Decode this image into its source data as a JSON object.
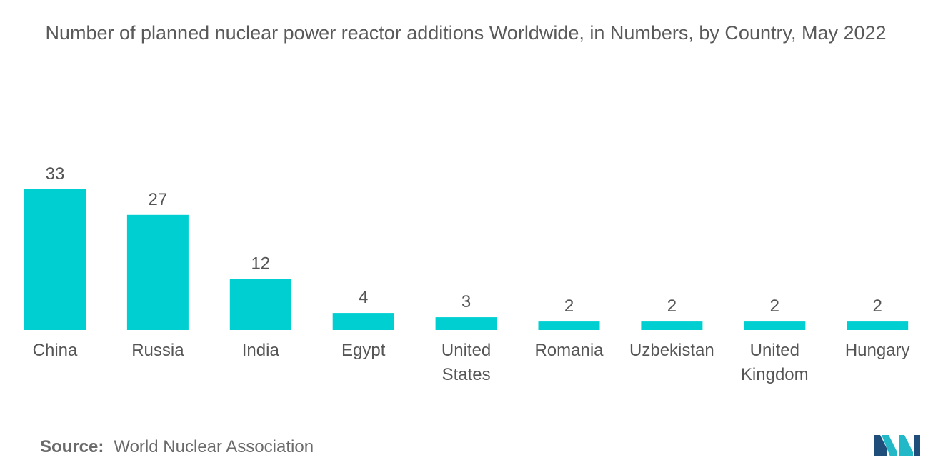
{
  "chart_data": {
    "type": "bar",
    "title": "Number of planned nuclear power reactor additions Worldwide, in Numbers, by Country, May 2022",
    "categories": [
      "China",
      "Russia",
      "India",
      "Egypt",
      "United States",
      "Romania",
      "Uzbekistan",
      "United Kingdom",
      "Hungary"
    ],
    "category_lines": [
      [
        "China"
      ],
      [
        "Russia"
      ],
      [
        "India"
      ],
      [
        "Egypt"
      ],
      [
        "United",
        "States"
      ],
      [
        "Romania"
      ],
      [
        "Uzbekistan"
      ],
      [
        "United",
        "Kingdom"
      ],
      [
        "Hungary"
      ]
    ],
    "values": [
      33,
      27,
      12,
      4,
      3,
      2,
      2,
      2,
      2
    ],
    "xlabel": "",
    "ylabel": "",
    "grid": false,
    "legend": "none",
    "bar_color": "#00cfd1"
  },
  "source": {
    "label": "Source:",
    "text": "World Nuclear Association"
  },
  "logo": {
    "icon": "mordor-intelligence-logo-icon",
    "colors": [
      "#1f4e7a",
      "#22b8c8"
    ]
  }
}
